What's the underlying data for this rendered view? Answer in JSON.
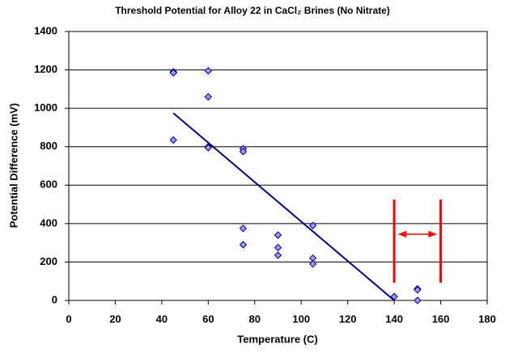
{
  "chart_data": {
    "type": "scatter",
    "title": "Threshold Potential for Alloy 22 in CaCl₂ Brines (No Nitrate)",
    "x_label": "Temperature (C)",
    "y_label": "Potential Difference (mV)",
    "x": [
      45,
      45,
      60,
      60,
      45,
      60,
      60,
      75,
      75,
      75,
      75,
      90,
      90,
      90,
      105,
      105,
      105,
      140,
      150,
      150,
      150
    ],
    "values": [
      1190,
      1185,
      1195,
      1060,
      835,
      800,
      795,
      790,
      775,
      375,
      290,
      340,
      275,
      235,
      390,
      220,
      190,
      20,
      60,
      55,
      0
    ],
    "color": "#9999ff",
    "xlim": [
      0,
      180
    ],
    "xticks": [
      0,
      20,
      40,
      60,
      80,
      100,
      120,
      140,
      160,
      180
    ],
    "ylim": [
      0,
      1400
    ],
    "yticks": [
      0,
      200,
      400,
      600,
      800,
      1000,
      1200,
      1400
    ],
    "grid": true,
    "trend": {
      "color": "#000080",
      "x": [
        45,
        140
      ],
      "values": [
        975,
        0
      ]
    },
    "threshold_color": "#ff0000",
    "threshold_lines": [
      {
        "x": 140,
        "y": [
          525,
          92
        ]
      },
      {
        "x": 160,
        "y": [
          525,
          92
        ]
      }
    ],
    "threshold_arrow": {
      "x": [
        142,
        158
      ],
      "y": 345
    }
  }
}
